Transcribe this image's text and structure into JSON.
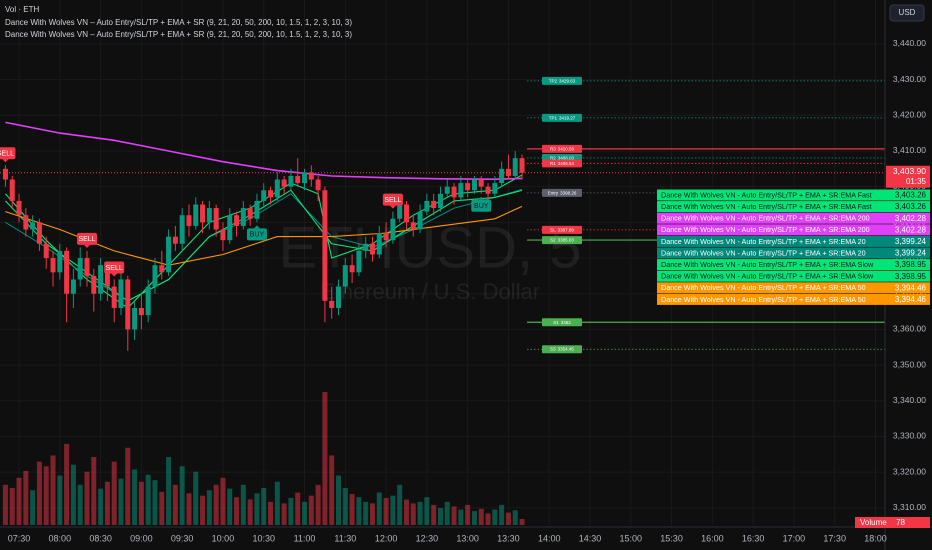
{
  "chart_data": {
    "type": "candlestick",
    "symbol_watermark": "ETHUSD, 5",
    "symbol_description": "Ethereum / U.S. Dollar",
    "currency_button": "USD",
    "legend": [
      "Vol · ETH",
      "Dance With Wolves VN – Auto Entry/SL/TP + EMA + SR (9, 21, 20, 50, 200, 10, 1.5, 1, 2, 3, 10, 3)",
      "Dance With Wolves VN – Auto Entry/SL/TP + EMA + SR (9, 21, 20, 50, 200, 10, 1.5, 1, 2, 3, 10, 3)"
    ],
    "xlim": [
      "07:16",
      "18:07"
    ],
    "xticks": [
      "07:30",
      "08:00",
      "08:30",
      "09:00",
      "09:30",
      "10:00",
      "10:30",
      "11:00",
      "11:30",
      "12:00",
      "12:30",
      "13:00",
      "13:30",
      "14:00",
      "14:30",
      "15:00",
      "15:30",
      "16:00",
      "16:30",
      "17:00",
      "17:30",
      "18:00"
    ],
    "ylim": [
      3305.2,
      3452.3
    ],
    "yticks": [
      {
        "value": 3310,
        "label": "3,310.00"
      },
      {
        "value": 3320,
        "label": "3,320.00"
      },
      {
        "value": 3330,
        "label": "3,330.00"
      },
      {
        "value": 3340,
        "label": "3,340.00"
      },
      {
        "value": 3350,
        "label": "3,350.00"
      },
      {
        "value": 3360,
        "label": "3,360.00"
      },
      {
        "value": 3370,
        "label": "3,370.00"
      },
      {
        "value": 3380,
        "label": "3,380.00"
      },
      {
        "value": 3390,
        "label": "3,390.00"
      },
      {
        "value": 3400,
        "label": "3,400.00"
      },
      {
        "value": 3410,
        "label": "3,410.00"
      },
      {
        "value": 3420,
        "label": "3,420.00"
      },
      {
        "value": 3430,
        "label": "3,430.00"
      },
      {
        "value": 3440,
        "label": "3,440.00"
      }
    ],
    "grid": true,
    "up_color": "#089981",
    "down_color": "#f23645",
    "x": [
      "07:20",
      "07:25",
      "07:30",
      "07:35",
      "07:40",
      "07:45",
      "07:50",
      "07:55",
      "08:00",
      "08:05",
      "08:10",
      "08:15",
      "08:20",
      "08:25",
      "08:30",
      "08:35",
      "08:40",
      "08:45",
      "08:50",
      "08:55",
      "09:00",
      "09:05",
      "09:10",
      "09:15",
      "09:20",
      "09:25",
      "09:30",
      "09:35",
      "09:40",
      "09:45",
      "09:50",
      "09:55",
      "10:00",
      "10:05",
      "10:10",
      "10:15",
      "10:20",
      "10:25",
      "10:30",
      "10:35",
      "10:40",
      "10:45",
      "10:50",
      "10:55",
      "11:00",
      "11:05",
      "11:10",
      "11:15",
      "11:20",
      "11:25",
      "11:30",
      "11:35",
      "11:40",
      "11:45",
      "11:50",
      "11:55",
      "12:00",
      "12:05",
      "12:10",
      "12:15",
      "12:20",
      "12:25",
      "12:30",
      "12:35",
      "12:40",
      "12:45",
      "12:50",
      "12:55",
      "13:00",
      "13:05",
      "13:10",
      "13:15",
      "13:20",
      "13:25",
      "13:30",
      "13:35",
      "13:40"
    ],
    "open": [
      3405,
      3402,
      3396,
      3392,
      3388,
      3390,
      3384,
      3380,
      3376,
      3382,
      3370,
      3374,
      3380,
      3375,
      3370,
      3378,
      3372,
      3366,
      3374,
      3360,
      3366,
      3364,
      3372,
      3378,
      3376,
      3386,
      3384,
      3392,
      3389,
      3395,
      3390,
      3394,
      3388,
      3385,
      3392,
      3389,
      3394,
      3391,
      3396,
      3399,
      3397,
      3402,
      3400,
      3403,
      3401,
      3404,
      3402,
      3399,
      3368,
      3366,
      3372,
      3378,
      3376,
      3382,
      3384,
      3381,
      3387,
      3385,
      3391,
      3395,
      3390,
      3388,
      3393,
      3396,
      3394,
      3398,
      3400,
      3397,
      3401,
      3399,
      3402,
      3400,
      3398,
      3401,
      3405,
      3403,
      3408
    ],
    "high": [
      3406,
      3403,
      3398,
      3394,
      3392,
      3391,
      3386,
      3382,
      3384,
      3383,
      3377,
      3383,
      3382,
      3377,
      3380,
      3379,
      3374,
      3376,
      3375,
      3368,
      3370,
      3374,
      3380,
      3382,
      3388,
      3389,
      3394,
      3395,
      3397,
      3396,
      3396,
      3395,
      3390,
      3394,
      3393,
      3396,
      3395,
      3398,
      3401,
      3400,
      3404,
      3403,
      3405,
      3408,
      3405,
      3406,
      3403,
      3400,
      3372,
      3374,
      3380,
      3381,
      3384,
      3386,
      3386,
      3389,
      3390,
      3393,
      3397,
      3396,
      3392,
      3395,
      3398,
      3398,
      3400,
      3402,
      3401,
      3403,
      3402,
      3403,
      3403,
      3401,
      3403,
      3407,
      3409,
      3410,
      3409
    ],
    "low": [
      3400,
      3394,
      3390,
      3386,
      3386,
      3382,
      3377,
      3372,
      3374,
      3362,
      3366,
      3372,
      3372,
      3365,
      3368,
      3368,
      3362,
      3364,
      3354,
      3357,
      3360,
      3362,
      3370,
      3374,
      3375,
      3382,
      3382,
      3386,
      3388,
      3387,
      3388,
      3386,
      3382,
      3384,
      3386,
      3388,
      3389,
      3390,
      3394,
      3395,
      3396,
      3398,
      3399,
      3400,
      3399,
      3400,
      3396,
      3362,
      3363,
      3364,
      3370,
      3373,
      3375,
      3380,
      3379,
      3380,
      3383,
      3384,
      3390,
      3388,
      3386,
      3387,
      3392,
      3392,
      3393,
      3397,
      3395,
      3396,
      3397,
      3398,
      3398,
      3396,
      3397,
      3400,
      3402,
      3402,
      3402
    ],
    "close": [
      3402,
      3396,
      3392,
      3388,
      3390,
      3384,
      3380,
      3376,
      3382,
      3370,
      3374,
      3380,
      3375,
      3370,
      3378,
      3372,
      3366,
      3374,
      3360,
      3366,
      3364,
      3372,
      3378,
      3376,
      3386,
      3384,
      3392,
      3389,
      3395,
      3390,
      3394,
      3388,
      3385,
      3392,
      3389,
      3394,
      3391,
      3396,
      3399,
      3397,
      3402,
      3400,
      3403,
      3401,
      3404,
      3402,
      3399,
      3368,
      3366,
      3372,
      3378,
      3376,
      3382,
      3384,
      3381,
      3387,
      3385,
      3391,
      3395,
      3390,
      3388,
      3393,
      3396,
      3394,
      3398,
      3400,
      3397,
      3401,
      3399,
      3402,
      3400,
      3398,
      3401,
      3405,
      3403,
      3408,
      3403.9
    ],
    "volume_name": "Volume",
    "volume_lim": [
      0,
      2200
    ],
    "volume": [
      520,
      480,
      610,
      700,
      450,
      820,
      760,
      900,
      640,
      1050,
      780,
      520,
      690,
      880,
      470,
      560,
      820,
      600,
      1000,
      720,
      560,
      650,
      580,
      430,
      880,
      520,
      760,
      410,
      690,
      380,
      450,
      520,
      610,
      470,
      360,
      520,
      330,
      410,
      480,
      300,
      560,
      280,
      350,
      420,
      300,
      380,
      520,
      1720,
      900,
      640,
      480,
      400,
      360,
      300,
      280,
      420,
      350,
      380,
      520,
      330,
      280,
      300,
      360,
      260,
      220,
      300,
      240,
      200,
      260,
      180,
      210,
      150,
      200,
      260,
      160,
      190,
      78
    ],
    "price_line": {
      "value": 3403.9,
      "label": "3,403.90",
      "countdown": "01:35",
      "color": "#f23645"
    },
    "lines": [
      {
        "name": "Dance With Wolves VN - Auto Entry/SL/TP + EMA + SR:EMA Fast",
        "color": "#00e676",
        "text_color": "#131722",
        "x": [
          "07:20",
          "07:50",
          "08:20",
          "08:50",
          "09:20",
          "09:50",
          "10:20",
          "10:50",
          "11:10",
          "11:20",
          "11:50",
          "12:20",
          "12:50",
          "13:20",
          "13:40"
        ],
        "values": [
          3398,
          3385,
          3374,
          3366,
          3378,
          3390,
          3394,
          3401,
          3398,
          3380,
          3384,
          3392,
          3398,
          3399,
          3403.26
        ],
        "value_labels": [
          null,
          null,
          null,
          null,
          null,
          null,
          null,
          null,
          null,
          null,
          null,
          null,
          null,
          null,
          "3,403.26"
        ]
      },
      {
        "name": "Dance With Wolves VN - Auto Entry/SL/TP + EMA + SR:EMA 200",
        "color": "#e040fb",
        "text_color": "#ffffff",
        "x": [
          "07:20",
          "08:00",
          "08:40",
          "09:20",
          "10:00",
          "10:40",
          "11:20",
          "12:00",
          "12:40",
          "13:20",
          "13:40"
        ],
        "values": [
          3418,
          3415,
          3413,
          3410,
          3407,
          3404.5,
          3403,
          3402.5,
          3402.2,
          3402.1,
          3402.28
        ],
        "value_labels": [
          null,
          null,
          null,
          null,
          null,
          null,
          null,
          null,
          null,
          null,
          "3,402.28"
        ]
      },
      {
        "name": "Dance With Wolves VN - Auto Entry/SL/TP + EMA + SR:EMA 20",
        "color": "#00897b",
        "text_color": "#ffffff",
        "x": [
          "07:20",
          "07:50",
          "08:20",
          "08:50",
          "09:20",
          "09:50",
          "10:20",
          "10:50",
          "11:20",
          "11:50",
          "12:20",
          "12:50",
          "13:20",
          "13:40"
        ],
        "values": [
          3390,
          3383,
          3375,
          3368,
          3374,
          3386,
          3391,
          3398,
          3386,
          3383,
          3388,
          3394,
          3397,
          3399.24
        ],
        "value_labels": [
          null,
          null,
          null,
          null,
          null,
          null,
          null,
          null,
          null,
          null,
          null,
          null,
          null,
          "3,399.24"
        ]
      },
      {
        "name": "Dance With Wolves VN - Auto Entry/SL/TP + EMA + SR:EMA Slow",
        "color": "#00e676",
        "text_color": "#131722",
        "x": [
          "07:20",
          "07:50",
          "08:20",
          "08:50",
          "09:20",
          "09:50",
          "10:20",
          "10:50",
          "11:20",
          "11:50",
          "12:20",
          "12:50",
          "13:20",
          "13:40"
        ],
        "values": [
          3396,
          3384,
          3376,
          3368,
          3374,
          3386,
          3392,
          3399,
          3384,
          3382,
          3389,
          3396,
          3397,
          3398.95
        ],
        "value_labels": [
          null,
          null,
          null,
          null,
          null,
          null,
          null,
          null,
          null,
          null,
          null,
          null,
          null,
          "3,398.95"
        ]
      },
      {
        "name": "Dance With Wolves VN - Auto Entry/SL/TP + EMA + SR:EMA 50",
        "color": "#ff9800",
        "text_color": "#ffffff",
        "x": [
          "07:20",
          "08:00",
          "08:40",
          "09:20",
          "10:00",
          "10:40",
          "11:20",
          "12:00",
          "12:40",
          "13:20",
          "13:40"
        ],
        "values": [
          3393,
          3388,
          3382,
          3378,
          3381,
          3386,
          3386,
          3387,
          3389,
          3391,
          3394.46
        ],
        "value_labels": [
          null,
          null,
          null,
          null,
          null,
          null,
          null,
          null,
          null,
          null,
          "3,394.46"
        ]
      }
    ],
    "levels": [
      {
        "label": "TP2",
        "value": 3429.63,
        "color": "#089981",
        "style": "dotted"
      },
      {
        "label": "TP1",
        "value": 3419.27,
        "color": "#089981",
        "style": "dotted"
      },
      {
        "label": "R3",
        "value": 3410.58,
        "color": "#f23645",
        "style": "solid"
      },
      {
        "label": "R2",
        "value": 3408.03,
        "color": "#089981",
        "style": "dotted"
      },
      {
        "label": "R1",
        "value": 3406.54,
        "color": "#f23645",
        "style": "dotted"
      },
      {
        "label": "Entry",
        "value": 3398.26,
        "color": "#5d606b",
        "style": "dotted"
      },
      {
        "label": "SL",
        "value": 3387.89,
        "color": "#f23645",
        "style": "dotted"
      },
      {
        "label": "S2",
        "value": 3385.03,
        "color": "#4caf50",
        "style": "solid"
      },
      {
        "label": "S1",
        "value": 3362.0,
        "color": "#4caf50",
        "style": "solid"
      },
      {
        "label": "S3",
        "value": 3354.45,
        "color": "#4caf50",
        "style": "dotted"
      }
    ],
    "signals": [
      {
        "label": "SELL",
        "x": "07:20",
        "side": "above"
      },
      {
        "label": "SELL",
        "x": "08:20",
        "side": "above"
      },
      {
        "label": "SELL",
        "x": "08:40",
        "side": "above"
      },
      {
        "label": "BUY",
        "x": "10:25",
        "side": "below"
      },
      {
        "label": "SELL",
        "x": "12:05",
        "side": "above"
      },
      {
        "label": "BUY",
        "x": "13:10",
        "side": "below"
      }
    ]
  }
}
